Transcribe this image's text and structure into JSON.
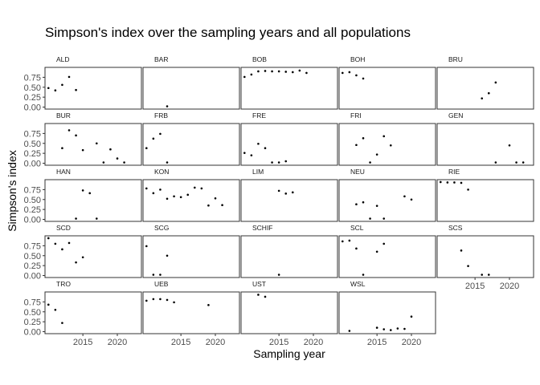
{
  "chart_data": {
    "type": "scatter",
    "title": "Simpson's index over the sampling years and all populations",
    "xlabel": "Sampling year",
    "ylabel": "Simpson's index",
    "xlim": [
      2009.5,
      2023.5
    ],
    "ylim": [
      -0.05,
      1.0
    ],
    "x_ticks": [
      2015,
      2020
    ],
    "x_tick_labels": [
      "2015",
      "2020"
    ],
    "y_ticks": [
      0,
      0.25,
      0.5,
      0.75
    ],
    "y_tick_labels": [
      "0.00",
      "0.25",
      "0.50",
      "0.75"
    ],
    "grid": false,
    "facet_columns": 5,
    "panels": [
      {
        "name": "ALD",
        "x": [
          2010,
          2011,
          2012,
          2013,
          2014
        ],
        "y": [
          0.48,
          0.42,
          0.56,
          0.76,
          0.43
        ]
      },
      {
        "name": "BAR",
        "x": [
          2013
        ],
        "y": [
          0.02
        ]
      },
      {
        "name": "BOB",
        "x": [
          2010,
          2011,
          2012,
          2013,
          2014,
          2015,
          2016,
          2017,
          2018,
          2019
        ],
        "y": [
          0.76,
          0.82,
          0.9,
          0.91,
          0.9,
          0.9,
          0.89,
          0.88,
          0.92,
          0.86
        ]
      },
      {
        "name": "BOH",
        "x": [
          2010,
          2011,
          2012,
          2013
        ],
        "y": [
          0.86,
          0.88,
          0.8,
          0.72
        ]
      },
      {
        "name": "BRU",
        "x": [
          2016,
          2017,
          2018
        ],
        "y": [
          0.22,
          0.35,
          0.62
        ]
      },
      {
        "name": "BUR",
        "x": [
          2012,
          2013,
          2014,
          2015,
          2017,
          2018,
          2019,
          2020,
          2021
        ],
        "y": [
          0.38,
          0.83,
          0.7,
          0.33,
          0.5,
          0.02,
          0.35,
          0.12,
          0.02
        ]
      },
      {
        "name": "FRB",
        "x": [
          2010,
          2011,
          2012,
          2013
        ],
        "y": [
          0.38,
          0.62,
          0.74,
          0.02
        ]
      },
      {
        "name": "FRE",
        "x": [
          2010,
          2011,
          2012,
          2013,
          2014,
          2015,
          2016
        ],
        "y": [
          0.26,
          0.2,
          0.49,
          0.38,
          0.02,
          0.02,
          0.05
        ]
      },
      {
        "name": "FRI",
        "x": [
          2012,
          2013,
          2014,
          2015,
          2016,
          2017
        ],
        "y": [
          0.46,
          0.63,
          0.02,
          0.22,
          0.68,
          0.45
        ]
      },
      {
        "name": "GEN",
        "x": [
          2018,
          2020,
          2021,
          2022
        ],
        "y": [
          0.02,
          0.45,
          0.02,
          0.02
        ]
      },
      {
        "name": "HAN",
        "x": [
          2014,
          2015,
          2016,
          2017
        ],
        "y": [
          0.02,
          0.73,
          0.66,
          0.02
        ]
      },
      {
        "name": "KON",
        "x": [
          2010,
          2011,
          2012,
          2013,
          2014,
          2015,
          2016,
          2017,
          2018,
          2019,
          2020,
          2021
        ],
        "y": [
          0.78,
          0.66,
          0.75,
          0.52,
          0.58,
          0.56,
          0.62,
          0.8,
          0.78,
          0.35,
          0.53,
          0.36
        ]
      },
      {
        "name": "LIM",
        "x": [
          2015,
          2016,
          2017
        ],
        "y": [
          0.72,
          0.65,
          0.68
        ]
      },
      {
        "name": "NEU",
        "x": [
          2012,
          2013,
          2014,
          2015,
          2016,
          2019,
          2020
        ],
        "y": [
          0.38,
          0.43,
          0.02,
          0.34,
          0.02,
          0.58,
          0.5
        ]
      },
      {
        "name": "RIE",
        "x": [
          2010,
          2011,
          2012,
          2013,
          2014
        ],
        "y": [
          0.94,
          0.93,
          0.93,
          0.92,
          0.75
        ]
      },
      {
        "name": "SCD",
        "x": [
          2010,
          2011,
          2012,
          2013,
          2014,
          2015
        ],
        "y": [
          0.94,
          0.8,
          0.66,
          0.82,
          0.33,
          0.46
        ]
      },
      {
        "name": "SCG",
        "x": [
          2010,
          2011,
          2012,
          2013
        ],
        "y": [
          0.74,
          0.02,
          0.02,
          0.5
        ]
      },
      {
        "name": "SCHIF",
        "x": [
          2015
        ],
        "y": [
          0.02
        ]
      },
      {
        "name": "SCL",
        "x": [
          2010,
          2011,
          2012,
          2013,
          2015,
          2016
        ],
        "y": [
          0.86,
          0.88,
          0.68,
          0.02,
          0.6,
          0.8
        ]
      },
      {
        "name": "SCS",
        "x": [
          2013,
          2014,
          2016,
          2017
        ],
        "y": [
          0.63,
          0.24,
          0.02,
          0.02
        ]
      },
      {
        "name": "TRO",
        "x": [
          2010,
          2011,
          2012
        ],
        "y": [
          0.68,
          0.55,
          0.22
        ]
      },
      {
        "name": "UEB",
        "x": [
          2010,
          2011,
          2012,
          2013,
          2014,
          2019
        ],
        "y": [
          0.78,
          0.82,
          0.82,
          0.8,
          0.74,
          0.67
        ]
      },
      {
        "name": "UST",
        "x": [
          2012,
          2013
        ],
        "y": [
          0.93,
          0.88
        ]
      },
      {
        "name": "WSL",
        "x": [
          2011,
          2015,
          2016,
          2017,
          2018,
          2019,
          2020
        ],
        "y": [
          0.02,
          0.1,
          0.06,
          0.04,
          0.08,
          0.07,
          0.38
        ]
      }
    ]
  }
}
